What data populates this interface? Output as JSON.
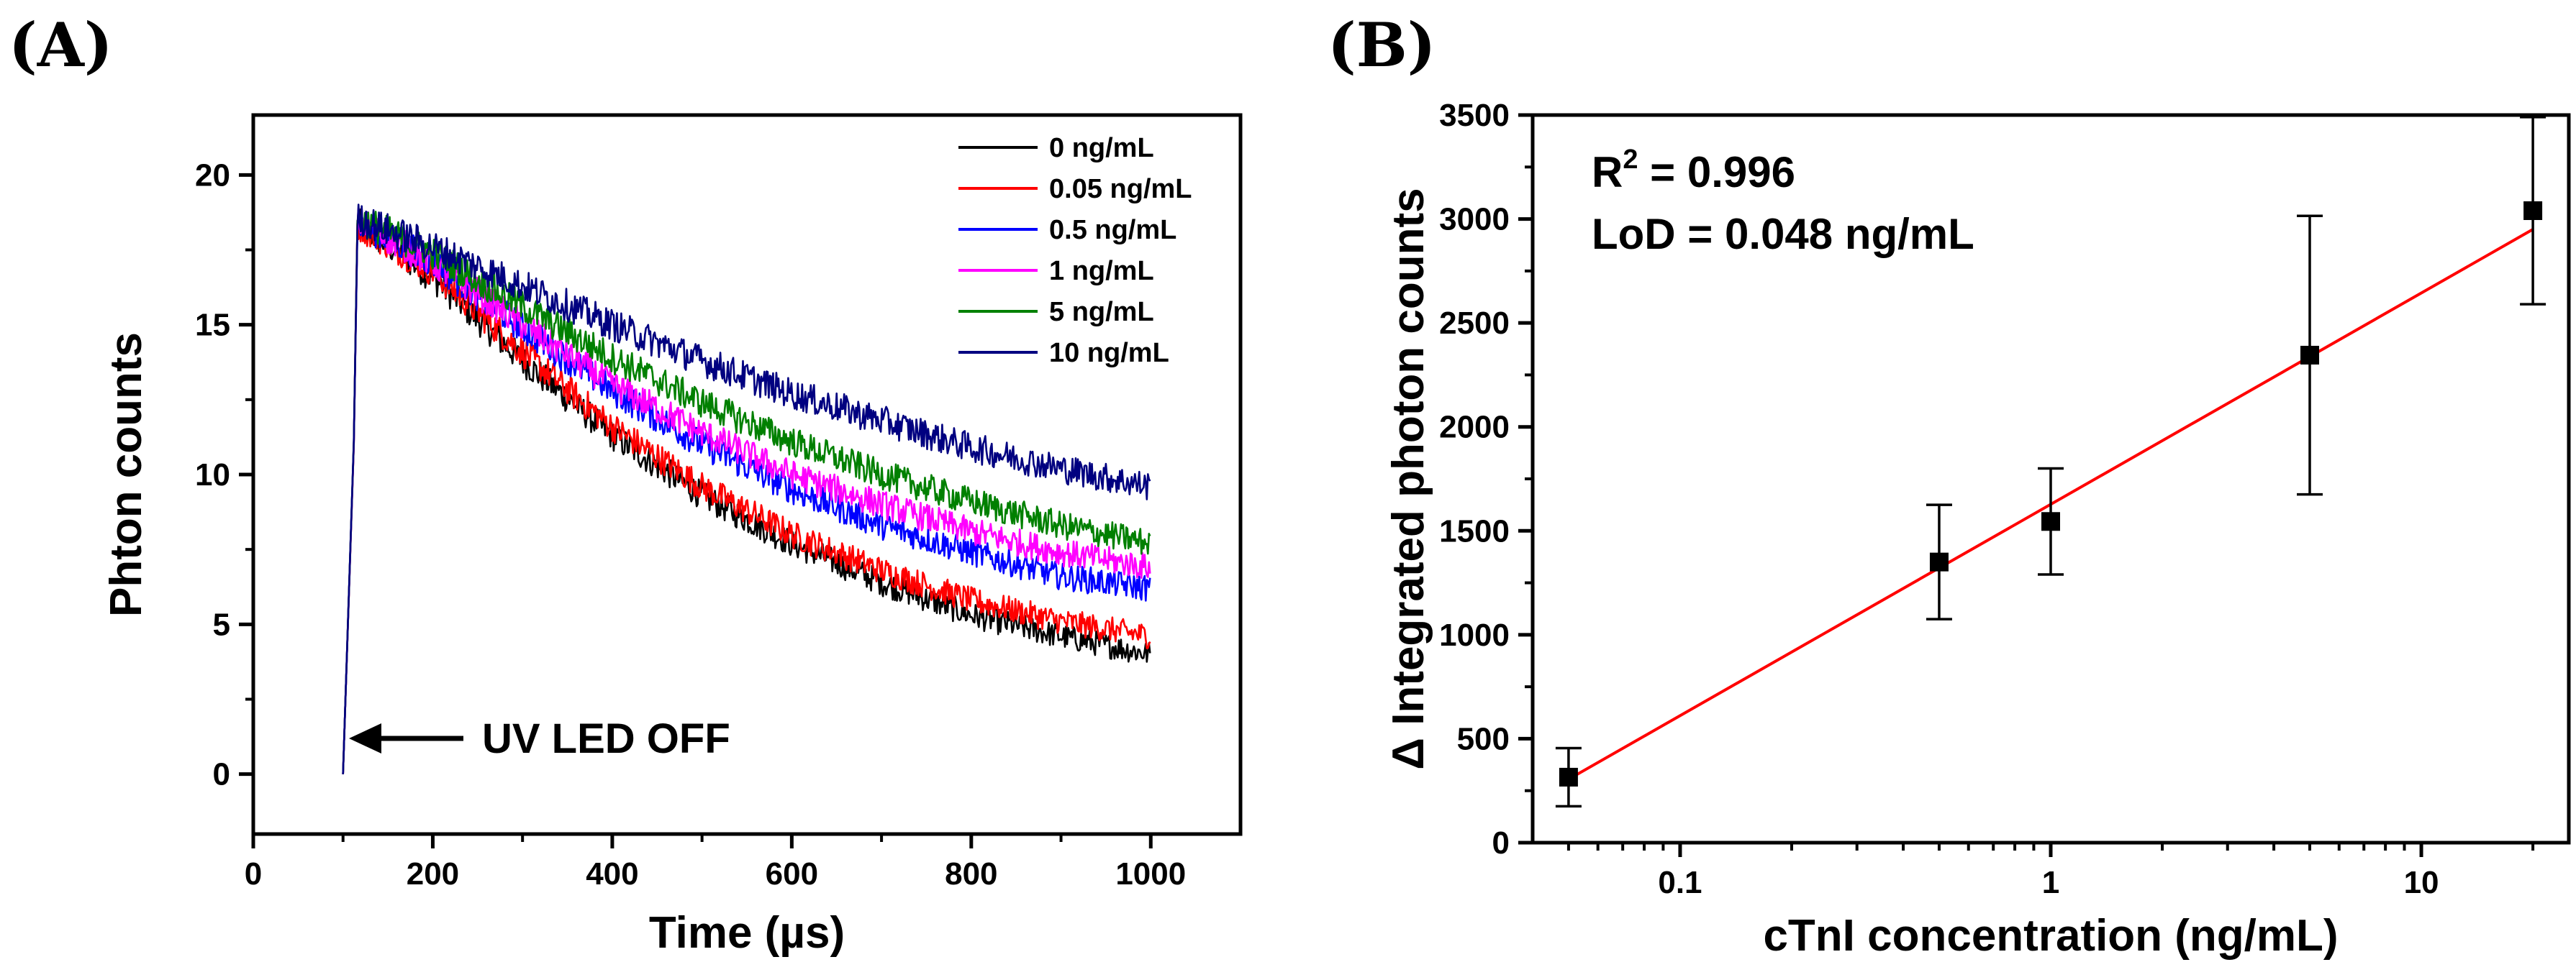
{
  "chart_data": [
    {
      "panel": "(A)",
      "type": "line",
      "title": "",
      "xlabel": "Time (µs)",
      "ylabel": "Phton counts",
      "xlim": [
        0,
        1100
      ],
      "ylim": [
        -2,
        22
      ],
      "xticks": [
        0,
        200,
        400,
        600,
        800,
        1000
      ],
      "yticks": [
        0,
        5,
        10,
        15,
        20
      ],
      "legend_position": "top-right",
      "annotation": "UV LED OFF",
      "pulse_off_time": 100,
      "series": [
        {
          "name": "0 ng/mL",
          "color": "#000000",
          "x": [
            100,
            120,
            200,
            300,
            400,
            500,
            600,
            700,
            800,
            900,
            1000
          ],
          "y": [
            0,
            18.3,
            16.6,
            13.8,
            11.3,
            9.3,
            7.7,
            6.4,
            5.3,
            4.6,
            4.0
          ]
        },
        {
          "name": "0.05 ng/mL",
          "color": "#ff0000",
          "x": [
            100,
            120,
            200,
            300,
            400,
            500,
            600,
            700,
            800,
            900,
            1000
          ],
          "y": [
            0,
            18.3,
            16.8,
            14.1,
            11.6,
            9.6,
            8.0,
            6.8,
            5.8,
            5.1,
            4.6
          ]
        },
        {
          "name": "0.5 ng/mL",
          "color": "#0000ff",
          "x": [
            100,
            120,
            200,
            300,
            400,
            500,
            600,
            700,
            800,
            900,
            1000
          ],
          "y": [
            0,
            18.4,
            17.1,
            14.9,
            12.8,
            11.0,
            9.5,
            8.3,
            7.4,
            6.6,
            6.2
          ]
        },
        {
          "name": "1 ng/mL",
          "color": "#ff00ff",
          "x": [
            100,
            120,
            200,
            300,
            400,
            500,
            600,
            700,
            800,
            900,
            1000
          ],
          "y": [
            0,
            18.4,
            17.1,
            15.0,
            13.0,
            11.4,
            10.0,
            9.0,
            8.1,
            7.4,
            6.9
          ]
        },
        {
          "name": "5 ng/mL",
          "color": "#008000",
          "x": [
            100,
            120,
            200,
            300,
            400,
            500,
            600,
            700,
            800,
            900,
            1000
          ],
          "y": [
            0,
            18.5,
            17.4,
            15.6,
            13.9,
            12.4,
            11.1,
            10.0,
            9.1,
            8.3,
            7.7
          ]
        },
        {
          "name": "10 ng/mL",
          "color": "#000080",
          "x": [
            100,
            120,
            200,
            300,
            400,
            500,
            600,
            700,
            800,
            900,
            1000
          ],
          "y": [
            0,
            18.5,
            17.6,
            16.3,
            15.0,
            13.8,
            12.7,
            11.8,
            10.9,
            10.2,
            9.6
          ]
        }
      ]
    },
    {
      "panel": "(B)",
      "type": "scatter",
      "title": "",
      "xlabel": "cTnI concentration (ng/mL)",
      "ylabel": "Δ Integrated photon counts",
      "xscale": "log",
      "xlim": [
        0.04,
        25
      ],
      "ylim": [
        0,
        3500
      ],
      "xticks": [
        0.1,
        1,
        10
      ],
      "xtick_labels": [
        "0.1",
        "1",
        "10"
      ],
      "yticks": [
        0,
        500,
        1000,
        1500,
        2000,
        2500,
        3000,
        3500
      ],
      "stats": {
        "r2_prefix": "R",
        "r2_superscript": "2",
        "r2_value": " = 0.996",
        "lod": "LoD = 0.048 ng/mL"
      },
      "points": [
        {
          "x": 0.05,
          "y": 315,
          "err": 140
        },
        {
          "x": 0.5,
          "y": 1350,
          "err": 275
        },
        {
          "x": 1,
          "y": 1545,
          "err": 255
        },
        {
          "x": 5,
          "y": 2345,
          "err": 670
        },
        {
          "x": 20,
          "y": 3040,
          "err": 450
        }
      ],
      "fit": {
        "color": "#ff0000",
        "x": [
          0.05,
          20
        ],
        "y": [
          305,
          2950
        ]
      }
    }
  ]
}
